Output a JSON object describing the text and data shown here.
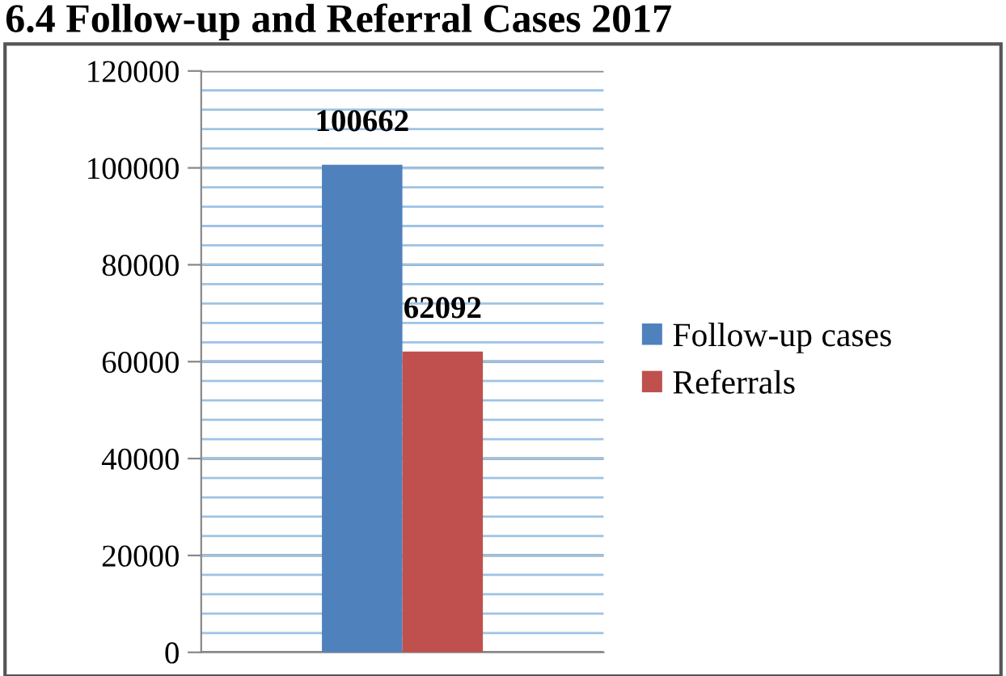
{
  "chart_data": {
    "type": "bar",
    "title": "6.4 Follow-up and Referral Cases 2017",
    "categories": [
      null
    ],
    "series": [
      {
        "name": "Follow-up cases",
        "color": "#4f81bd",
        "values": [
          100662
        ]
      },
      {
        "name": "Referrals",
        "color": "#c0504d",
        "values": [
          62092
        ]
      }
    ],
    "ylim": [
      0,
      120000
    ],
    "yticks": [
      0,
      20000,
      40000,
      60000,
      80000,
      100000,
      120000
    ],
    "grid": "y",
    "legend": "right",
    "data_labels": true
  }
}
